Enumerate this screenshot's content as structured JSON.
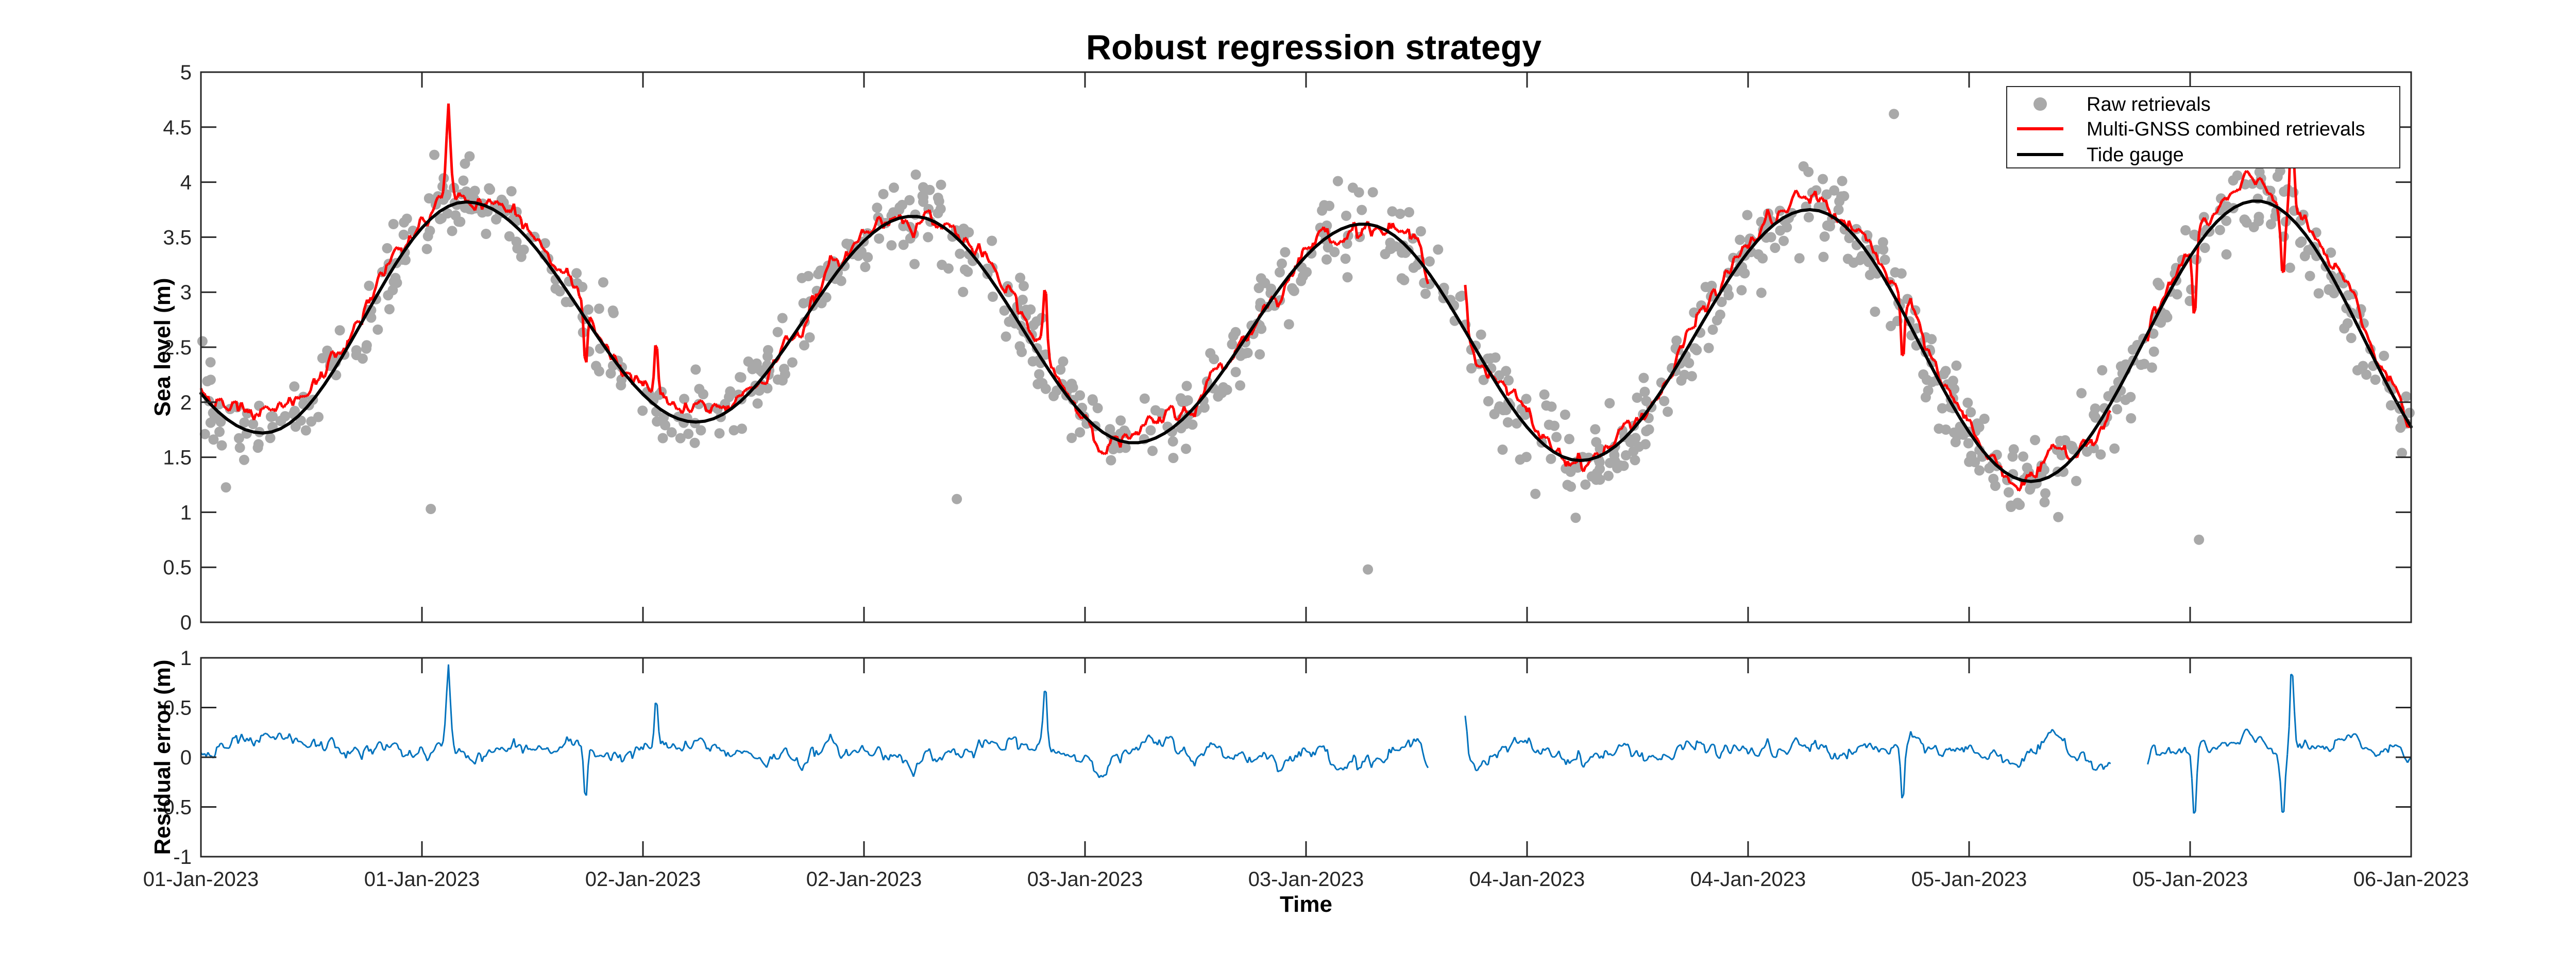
{
  "chart_data": [
    {
      "type": "scatter+line",
      "title": "Robust regression strategy",
      "ylabel": "Sea level (m)",
      "ylim": [
        0,
        5
      ],
      "yticks": [
        "0",
        "0.5",
        "1",
        "1.5",
        "2",
        "2.5",
        "3",
        "3.5",
        "4",
        "4.5",
        "5"
      ],
      "x_range_days": [
        0,
        5
      ],
      "legend_position": "top-right",
      "legend": [
        "Raw retrievals",
        "Multi-GNSS combined retrievals",
        "Tide gauge"
      ],
      "colors": {
        "raw": "#a9a9a9",
        "combined": "#ff0000",
        "tide": "#000000"
      },
      "tide_model": {
        "tide_min_points": [
          [
            0.14,
            1.72
          ],
          [
            1.12,
            1.82
          ],
          [
            2.11,
            1.63
          ],
          [
            3.12,
            1.47
          ],
          [
            4.14,
            1.28
          ]
        ],
        "tide_max_points": [
          [
            0.6,
            3.82
          ],
          [
            1.61,
            3.69
          ],
          [
            2.63,
            3.62
          ],
          [
            3.64,
            3.75
          ],
          [
            4.65,
            3.83
          ]
        ]
      },
      "series": [
        {
          "name": "Tide gauge",
          "marker": "line"
        },
        {
          "name": "Multi-GNSS combined retrievals",
          "marker": "line"
        },
        {
          "name": "Raw retrievals",
          "marker": "point"
        }
      ],
      "outliers": [
        [
          0.52,
          1.03
        ],
        [
          1.71,
          1.12
        ],
        [
          2.64,
          0.48
        ],
        [
          3.83,
          4.62
        ],
        [
          3.11,
          0.95
        ],
        [
          4.52,
          0.75
        ]
      ]
    },
    {
      "type": "line",
      "ylabel": "Residual error (m)",
      "xlabel": "Time",
      "ylim": [
        -1,
        1
      ],
      "yticks": [
        "-1",
        "-0.5",
        "0",
        "0.5",
        "1"
      ],
      "xtick_labels": [
        "01-Jan-2023",
        "01-Jan-2023",
        "02-Jan-2023",
        "02-Jan-2023",
        "03-Jan-2023",
        "03-Jan-2023",
        "04-Jan-2023",
        "04-Jan-2023",
        "05-Jan-2023",
        "05-Jan-2023",
        "06-Jan-2023"
      ],
      "color": "#0072bd",
      "spikes": [
        [
          0.56,
          0.8
        ],
        [
          1.03,
          0.55
        ],
        [
          1.91,
          0.6
        ],
        [
          2.86,
          0.62
        ],
        [
          3.85,
          -0.48
        ],
        [
          4.51,
          -0.8
        ],
        [
          4.73,
          0.93
        ],
        [
          4.71,
          -0.55
        ],
        [
          0.87,
          -0.52
        ]
      ]
    }
  ]
}
